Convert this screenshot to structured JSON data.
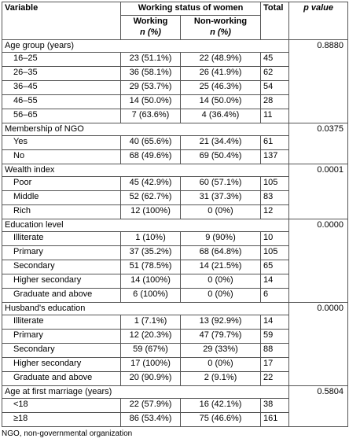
{
  "header": {
    "variable": "Variable",
    "working_status": "Working status of women",
    "total": "Total",
    "p_value": "p value",
    "working": "Working",
    "working_unit": "n (%)",
    "non_working": "Non-working",
    "non_working_unit": "n (%)"
  },
  "sections": [
    {
      "label": "Age group (years)",
      "p": "0.8880",
      "rows": [
        {
          "label": "16–25",
          "working": "23 (51.1%)",
          "non_working": "22 (48.9%)",
          "total": "45"
        },
        {
          "label": "26–35",
          "working": "36 (58.1%)",
          "non_working": "26 (41.9%)",
          "total": "62"
        },
        {
          "label": "36–45",
          "working": "29 (53.7%)",
          "non_working": "25 (46.3%)",
          "total": "54"
        },
        {
          "label": "46–55",
          "working": "14 (50.0%)",
          "non_working": "14 (50.0%)",
          "total": "28"
        },
        {
          "label": "56–65",
          "working": "7 (63.6%)",
          "non_working": "4 (36.4%)",
          "total": "11"
        }
      ]
    },
    {
      "label": "Membership of NGO",
      "p": "0.0375",
      "rows": [
        {
          "label": "Yes",
          "working": "40 (65.6%)",
          "non_working": "21 (34.4%)",
          "total": "61"
        },
        {
          "label": "No",
          "working": "68 (49.6%)",
          "non_working": "69 (50.4%)",
          "total": "137"
        }
      ]
    },
    {
      "label": "Wealth index",
      "p": "0.0001",
      "rows": [
        {
          "label": "Poor",
          "working": "45 (42.9%)",
          "non_working": "60 (57.1%)",
          "total": "105"
        },
        {
          "label": "Middle",
          "working": "52 (62.7%)",
          "non_working": "31 (37.3%)",
          "total": "83"
        },
        {
          "label": "Rich",
          "working": "12 (100%)",
          "non_working": "0 (0%)",
          "total": "12"
        }
      ]
    },
    {
      "label": "Education level",
      "p": "0.0000",
      "rows": [
        {
          "label": "Illiterate",
          "working": "1 (10%)",
          "non_working": "9 (90%)",
          "total": "10"
        },
        {
          "label": "Primary",
          "working": "37 (35.2%)",
          "non_working": "68 (64.8%)",
          "total": "105"
        },
        {
          "label": "Secondary",
          "working": "51 (78.5%)",
          "non_working": "14 (21.5%)",
          "total": "65"
        },
        {
          "label": "Higher secondary",
          "working": "14 (100%)",
          "non_working": "0 (0%)",
          "total": "14"
        },
        {
          "label": "Graduate and above",
          "working": "6 (100%)",
          "non_working": "0 (0%)",
          "total": "6"
        }
      ]
    },
    {
      "label": "Husband's education",
      "p": "0.0000",
      "rows": [
        {
          "label": "Illiterate",
          "working": "1 (7.1%)",
          "non_working": "13 (92.9%)",
          "total": "14"
        },
        {
          "label": "Primary",
          "working": "12 (20.3%)",
          "non_working": "47 (79.7%)",
          "total": "59"
        },
        {
          "label": "Secondary",
          "working": "59 (67%)",
          "non_working": "29 (33%)",
          "total": "88"
        },
        {
          "label": "Higher secondary",
          "working": "17 (100%)",
          "non_working": "0 (0%)",
          "total": "17"
        },
        {
          "label": "Graduate and above",
          "working": "20 (90.9%)",
          "non_working": "2 (9.1%)",
          "total": "22"
        }
      ]
    },
    {
      "label": "Age at first marriage (years)",
      "p": "0.5804",
      "rows": [
        {
          "label": "<18",
          "working": "22 (57.9%)",
          "non_working": "16 (42.1%)",
          "total": "38"
        },
        {
          "label": "≥18",
          "working": "86 (53.4%)",
          "non_working": "75 (46.6%)",
          "total": "161"
        }
      ]
    }
  ],
  "footnote": "NGO, non-governmental organization"
}
